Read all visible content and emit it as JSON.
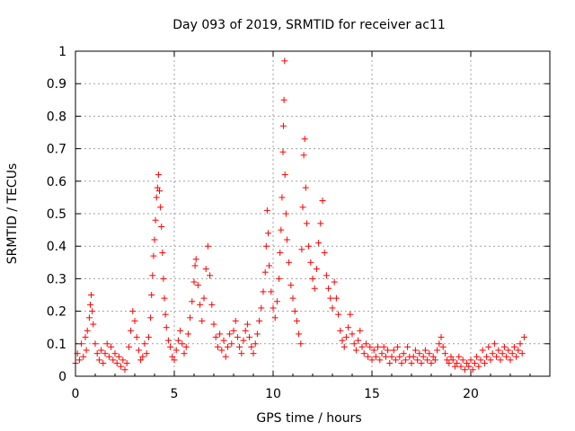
{
  "chart_data": {
    "type": "scatter",
    "title": "Day 093 of 2019, SRMTID for receiver ac11",
    "xlabel": "GPS time / hours",
    "ylabel": "SRMTID / TECUs",
    "xlim": [
      0,
      24
    ],
    "ylim": [
      0,
      1
    ],
    "x_ticks": [
      0,
      5,
      10,
      15,
      20
    ],
    "x_tick_labels": [
      "0",
      "5",
      "10",
      "15",
      "20"
    ],
    "y_ticks": [
      0,
      0.1,
      0.2,
      0.3,
      0.4,
      0.5,
      0.6,
      0.7,
      0.8,
      0.9,
      1
    ],
    "y_tick_labels": [
      "0",
      "0.1",
      "0.2",
      "0.3",
      "0.4",
      "0.5",
      "0.6",
      "0.7",
      "0.8",
      "0.9",
      "1"
    ],
    "grid": true,
    "marker": "+",
    "color": "#ff0000",
    "series": [
      {
        "name": "SRMTID",
        "points": [
          [
            0.0,
            0.04
          ],
          [
            0.1,
            0.07
          ],
          [
            0.2,
            0.05
          ],
          [
            0.3,
            0.1
          ],
          [
            0.4,
            0.06
          ],
          [
            0.5,
            0.12
          ],
          [
            0.55,
            0.08
          ],
          [
            0.6,
            0.14
          ],
          [
            0.7,
            0.18
          ],
          [
            0.75,
            0.22
          ],
          [
            0.8,
            0.25
          ],
          [
            0.85,
            0.2
          ],
          [
            0.9,
            0.16
          ],
          [
            1.0,
            0.1
          ],
          [
            1.1,
            0.07
          ],
          [
            1.2,
            0.05
          ],
          [
            1.3,
            0.08
          ],
          [
            1.4,
            0.04
          ],
          [
            1.5,
            0.07
          ],
          [
            1.6,
            0.1
          ],
          [
            1.7,
            0.06
          ],
          [
            1.8,
            0.09
          ],
          [
            1.9,
            0.05
          ],
          [
            2.0,
            0.07
          ],
          [
            2.1,
            0.04
          ],
          [
            2.2,
            0.06
          ],
          [
            2.3,
            0.03
          ],
          [
            2.4,
            0.05
          ],
          [
            2.5,
            0.02
          ],
          [
            2.6,
            0.04
          ],
          [
            2.7,
            0.09
          ],
          [
            2.8,
            0.14
          ],
          [
            2.9,
            0.2
          ],
          [
            3.0,
            0.17
          ],
          [
            3.1,
            0.12
          ],
          [
            3.2,
            0.08
          ],
          [
            3.3,
            0.05
          ],
          [
            3.4,
            0.06
          ],
          [
            3.5,
            0.1
          ],
          [
            3.6,
            0.07
          ],
          [
            3.7,
            0.12
          ],
          [
            3.8,
            0.18
          ],
          [
            3.85,
            0.25
          ],
          [
            3.9,
            0.31
          ],
          [
            3.95,
            0.37
          ],
          [
            4.0,
            0.42
          ],
          [
            4.05,
            0.48
          ],
          [
            4.1,
            0.55
          ],
          [
            4.15,
            0.58
          ],
          [
            4.2,
            0.62
          ],
          [
            4.25,
            0.57
          ],
          [
            4.3,
            0.52
          ],
          [
            4.35,
            0.46
          ],
          [
            4.4,
            0.38
          ],
          [
            4.45,
            0.3
          ],
          [
            4.5,
            0.24
          ],
          [
            4.55,
            0.19
          ],
          [
            4.6,
            0.15
          ],
          [
            4.7,
            0.11
          ],
          [
            4.8,
            0.09
          ],
          [
            4.9,
            0.06
          ],
          [
            5.0,
            0.05
          ],
          [
            5.1,
            0.08
          ],
          [
            5.2,
            0.11
          ],
          [
            5.3,
            0.14
          ],
          [
            5.4,
            0.1
          ],
          [
            5.5,
            0.07
          ],
          [
            5.6,
            0.09
          ],
          [
            5.7,
            0.13
          ],
          [
            5.8,
            0.18
          ],
          [
            5.9,
            0.23
          ],
          [
            6.0,
            0.29
          ],
          [
            6.05,
            0.34
          ],
          [
            6.1,
            0.36
          ],
          [
            6.2,
            0.28
          ],
          [
            6.3,
            0.22
          ],
          [
            6.4,
            0.17
          ],
          [
            6.5,
            0.24
          ],
          [
            6.6,
            0.33
          ],
          [
            6.7,
            0.4
          ],
          [
            6.8,
            0.31
          ],
          [
            6.9,
            0.22
          ],
          [
            7.0,
            0.16
          ],
          [
            7.1,
            0.12
          ],
          [
            7.2,
            0.09
          ],
          [
            7.3,
            0.13
          ],
          [
            7.4,
            0.08
          ],
          [
            7.5,
            0.11
          ],
          [
            7.6,
            0.06
          ],
          [
            7.7,
            0.09
          ],
          [
            7.8,
            0.13
          ],
          [
            7.9,
            0.1
          ],
          [
            8.0,
            0.14
          ],
          [
            8.1,
            0.17
          ],
          [
            8.2,
            0.12
          ],
          [
            8.3,
            0.09
          ],
          [
            8.4,
            0.07
          ],
          [
            8.5,
            0.11
          ],
          [
            8.6,
            0.14
          ],
          [
            8.7,
            0.16
          ],
          [
            8.8,
            0.12
          ],
          [
            8.9,
            0.09
          ],
          [
            9.0,
            0.07
          ],
          [
            9.1,
            0.1
          ],
          [
            9.2,
            0.13
          ],
          [
            9.3,
            0.17
          ],
          [
            9.4,
            0.21
          ],
          [
            9.5,
            0.26
          ],
          [
            9.6,
            0.32
          ],
          [
            9.65,
            0.4
          ],
          [
            9.7,
            0.51
          ],
          [
            9.75,
            0.44
          ],
          [
            9.8,
            0.34
          ],
          [
            9.9,
            0.26
          ],
          [
            10.0,
            0.21
          ],
          [
            10.1,
            0.18
          ],
          [
            10.2,
            0.23
          ],
          [
            10.3,
            0.3
          ],
          [
            10.35,
            0.38
          ],
          [
            10.4,
            0.45
          ],
          [
            10.45,
            0.55
          ],
          [
            10.5,
            0.69
          ],
          [
            10.52,
            0.77
          ],
          [
            10.55,
            0.85
          ],
          [
            10.58,
            0.97
          ],
          [
            10.6,
            0.62
          ],
          [
            10.65,
            0.5
          ],
          [
            10.7,
            0.42
          ],
          [
            10.8,
            0.35
          ],
          [
            10.9,
            0.28
          ],
          [
            11.0,
            0.24
          ],
          [
            11.1,
            0.2
          ],
          [
            11.2,
            0.17
          ],
          [
            11.3,
            0.13
          ],
          [
            11.4,
            0.1
          ],
          [
            11.45,
            0.39
          ],
          [
            11.5,
            0.52
          ],
          [
            11.55,
            0.68
          ],
          [
            11.6,
            0.73
          ],
          [
            11.65,
            0.58
          ],
          [
            11.7,
            0.47
          ],
          [
            11.8,
            0.4
          ],
          [
            11.9,
            0.35
          ],
          [
            12.0,
            0.3
          ],
          [
            12.1,
            0.27
          ],
          [
            12.2,
            0.33
          ],
          [
            12.3,
            0.41
          ],
          [
            12.4,
            0.47
          ],
          [
            12.5,
            0.54
          ],
          [
            12.6,
            0.38
          ],
          [
            12.7,
            0.31
          ],
          [
            12.8,
            0.27
          ],
          [
            12.9,
            0.24
          ],
          [
            13.0,
            0.21
          ],
          [
            13.1,
            0.29
          ],
          [
            13.2,
            0.24
          ],
          [
            13.3,
            0.19
          ],
          [
            13.4,
            0.14
          ],
          [
            13.5,
            0.11
          ],
          [
            13.6,
            0.09
          ],
          [
            13.7,
            0.12
          ],
          [
            13.8,
            0.15
          ],
          [
            13.9,
            0.19
          ],
          [
            14.0,
            0.13
          ],
          [
            14.1,
            0.1
          ],
          [
            14.2,
            0.08
          ],
          [
            14.3,
            0.11
          ],
          [
            14.4,
            0.14
          ],
          [
            14.5,
            0.09
          ],
          [
            14.6,
            0.07
          ],
          [
            14.7,
            0.1
          ],
          [
            14.8,
            0.06
          ],
          [
            14.9,
            0.09
          ],
          [
            15.0,
            0.05
          ],
          [
            15.1,
            0.08
          ],
          [
            15.2,
            0.06
          ],
          [
            15.3,
            0.09
          ],
          [
            15.4,
            0.05
          ],
          [
            15.5,
            0.07
          ],
          [
            15.6,
            0.09
          ],
          [
            15.7,
            0.06
          ],
          [
            15.8,
            0.08
          ],
          [
            15.9,
            0.04
          ],
          [
            16.0,
            0.06
          ],
          [
            16.1,
            0.08
          ],
          [
            16.2,
            0.05
          ],
          [
            16.3,
            0.09
          ],
          [
            16.4,
            0.06
          ],
          [
            16.5,
            0.04
          ],
          [
            16.6,
            0.07
          ],
          [
            16.7,
            0.05
          ],
          [
            16.8,
            0.09
          ],
          [
            16.9,
            0.06
          ],
          [
            17.0,
            0.04
          ],
          [
            17.1,
            0.06
          ],
          [
            17.2,
            0.08
          ],
          [
            17.3,
            0.05
          ],
          [
            17.4,
            0.07
          ],
          [
            17.5,
            0.04
          ],
          [
            17.6,
            0.06
          ],
          [
            17.7,
            0.08
          ],
          [
            17.8,
            0.05
          ],
          [
            17.9,
            0.07
          ],
          [
            18.0,
            0.04
          ],
          [
            18.1,
            0.06
          ],
          [
            18.2,
            0.05
          ],
          [
            18.3,
            0.08
          ],
          [
            18.4,
            0.1
          ],
          [
            18.5,
            0.12
          ],
          [
            18.6,
            0.09
          ],
          [
            18.7,
            0.07
          ],
          [
            18.8,
            0.05
          ],
          [
            18.9,
            0.04
          ],
          [
            19.0,
            0.06
          ],
          [
            19.1,
            0.05
          ],
          [
            19.2,
            0.03
          ],
          [
            19.3,
            0.04
          ],
          [
            19.4,
            0.06
          ],
          [
            19.5,
            0.03
          ],
          [
            19.6,
            0.05
          ],
          [
            19.7,
            0.02
          ],
          [
            19.8,
            0.04
          ],
          [
            19.9,
            0.03
          ],
          [
            20.0,
            0.05
          ],
          [
            20.1,
            0.02
          ],
          [
            20.2,
            0.04
          ],
          [
            20.3,
            0.06
          ],
          [
            20.4,
            0.03
          ],
          [
            20.5,
            0.05
          ],
          [
            20.6,
            0.08
          ],
          [
            20.7,
            0.04
          ],
          [
            20.8,
            0.06
          ],
          [
            20.9,
            0.09
          ],
          [
            21.0,
            0.05
          ],
          [
            21.1,
            0.07
          ],
          [
            21.2,
            0.1
          ],
          [
            21.3,
            0.06
          ],
          [
            21.4,
            0.08
          ],
          [
            21.5,
            0.05
          ],
          [
            21.6,
            0.07
          ],
          [
            21.7,
            0.09
          ],
          [
            21.8,
            0.06
          ],
          [
            21.9,
            0.08
          ],
          [
            22.0,
            0.05
          ],
          [
            22.1,
            0.07
          ],
          [
            22.2,
            0.09
          ],
          [
            22.3,
            0.06
          ],
          [
            22.4,
            0.08
          ],
          [
            22.5,
            0.1
          ],
          [
            22.6,
            0.07
          ],
          [
            22.7,
            0.12
          ]
        ]
      }
    ]
  }
}
